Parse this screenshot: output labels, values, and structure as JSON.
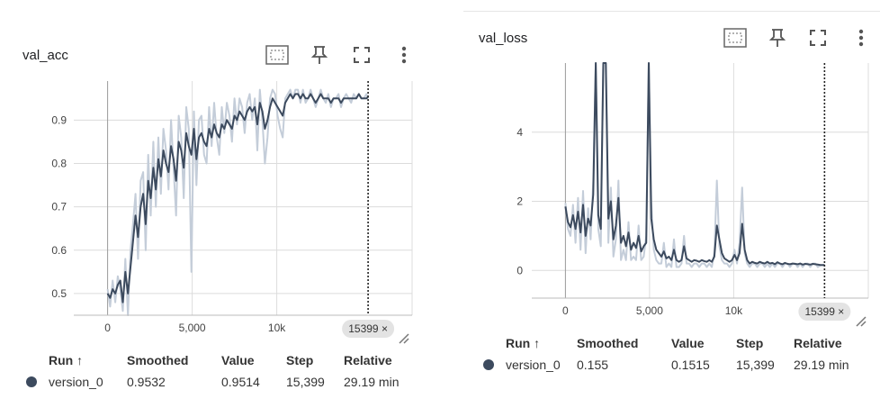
{
  "colors": {
    "line": "#3c4a5e",
    "raw": "#c4cdd9",
    "grid": "#dcdcdc",
    "cursor": "#222222"
  },
  "icons": [
    "fit-domain-icon",
    "pin-icon",
    "fullscreen-icon",
    "more-vert-icon",
    "resize-handle-icon"
  ],
  "charts": [
    {
      "title": "val_acc",
      "cursor_badge": "15399 ×",
      "legend": {
        "headers": [
          "Run ↑",
          "Smoothed",
          "Value",
          "Step",
          "Relative"
        ],
        "row": [
          "version_0",
          "0.9532",
          "0.9514",
          "15,399",
          "29.19 min"
        ]
      }
    },
    {
      "title": "val_loss",
      "cursor_badge": "15399 ×",
      "legend": {
        "headers": [
          "Run ↑",
          "Smoothed",
          "Value",
          "Step",
          "Relative"
        ],
        "row": [
          "version_0",
          "0.155",
          "0.1515",
          "15,399",
          "29.19 min"
        ]
      }
    }
  ],
  "chart_data": [
    {
      "type": "line",
      "title": "val_acc",
      "xlim": [
        -2000,
        18000
      ],
      "ylim": [
        0.45,
        0.99
      ],
      "xticks": [
        0,
        5000,
        10000
      ],
      "xtick_labels": [
        "0",
        "5,000",
        "10k"
      ],
      "yticks": [
        0.5,
        0.6,
        0.7,
        0.8,
        0.9
      ],
      "ytick_labels": [
        "0.5",
        "0.6",
        "0.7",
        "0.8",
        "0.9"
      ],
      "cursor_step": 15399,
      "grid": true,
      "series": [
        {
          "name": "version_0",
          "x": [
            0,
            150,
            300,
            450,
            600,
            750,
            900,
            1050,
            1200,
            1350,
            1500,
            1650,
            1800,
            1950,
            2100,
            2250,
            2400,
            2550,
            2700,
            2850,
            3000,
            3150,
            3300,
            3450,
            3600,
            3750,
            3900,
            4050,
            4200,
            4350,
            4500,
            4650,
            4800,
            4950,
            5100,
            5250,
            5400,
            5550,
            5700,
            5850,
            6000,
            6150,
            6300,
            6450,
            6600,
            6750,
            6900,
            7050,
            7200,
            7350,
            7500,
            7650,
            7800,
            7950,
            8100,
            8250,
            8400,
            8550,
            8700,
            8850,
            9000,
            9150,
            9300,
            9450,
            9600,
            9750,
            9900,
            10050,
            10200,
            10350,
            10500,
            10650,
            10800,
            10950,
            11100,
            11250,
            11400,
            11550,
            11700,
            11850,
            12000,
            12150,
            12300,
            12450,
            12600,
            12750,
            12900,
            13050,
            13200,
            13350,
            13500,
            13650,
            13800,
            13950,
            14100,
            14250,
            14400,
            14550,
            14700,
            14850,
            15000,
            15150,
            15300,
            15399
          ],
          "smoothed": [
            0.5,
            0.49,
            0.51,
            0.5,
            0.52,
            0.53,
            0.48,
            0.55,
            0.5,
            0.56,
            0.62,
            0.68,
            0.63,
            0.7,
            0.73,
            0.66,
            0.76,
            0.72,
            0.79,
            0.74,
            0.81,
            0.77,
            0.83,
            0.8,
            0.78,
            0.84,
            0.81,
            0.76,
            0.85,
            0.83,
            0.79,
            0.87,
            0.84,
            0.82,
            0.88,
            0.81,
            0.86,
            0.87,
            0.85,
            0.84,
            0.88,
            0.86,
            0.89,
            0.87,
            0.86,
            0.89,
            0.88,
            0.9,
            0.89,
            0.88,
            0.91,
            0.9,
            0.92,
            0.91,
            0.9,
            0.92,
            0.93,
            0.92,
            0.93,
            0.89,
            0.94,
            0.92,
            0.88,
            0.9,
            0.93,
            0.95,
            0.94,
            0.93,
            0.92,
            0.91,
            0.94,
            0.95,
            0.96,
            0.95,
            0.96,
            0.96,
            0.95,
            0.96,
            0.95,
            0.95,
            0.96,
            0.95,
            0.94,
            0.95,
            0.96,
            0.95,
            0.95,
            0.95,
            0.94,
            0.95,
            0.95,
            0.95,
            0.94,
            0.95,
            0.95,
            0.95,
            0.95,
            0.95,
            0.95,
            0.96,
            0.95,
            0.95,
            0.95,
            0.9532
          ],
          "raw": [
            0.51,
            0.47,
            0.53,
            0.48,
            0.54,
            0.51,
            0.46,
            0.58,
            0.45,
            0.6,
            0.66,
            0.73,
            0.58,
            0.76,
            0.78,
            0.6,
            0.82,
            0.68,
            0.85,
            0.7,
            0.86,
            0.73,
            0.88,
            0.83,
            0.74,
            0.9,
            0.79,
            0.68,
            0.91,
            0.86,
            0.72,
            0.93,
            0.88,
            0.55,
            0.92,
            0.75,
            0.9,
            0.91,
            0.82,
            0.8,
            0.93,
            0.84,
            0.94,
            0.86,
            0.82,
            0.93,
            0.87,
            0.94,
            0.91,
            0.85,
            0.95,
            0.89,
            0.95,
            0.93,
            0.87,
            0.94,
            0.96,
            0.9,
            0.95,
            0.83,
            0.97,
            0.9,
            0.8,
            0.86,
            0.95,
            0.97,
            0.96,
            0.91,
            0.88,
            0.86,
            0.95,
            0.96,
            0.97,
            0.95,
            0.97,
            0.97,
            0.94,
            0.97,
            0.94,
            0.95,
            0.97,
            0.95,
            0.93,
            0.95,
            0.97,
            0.95,
            0.94,
            0.96,
            0.93,
            0.95,
            0.95,
            0.96,
            0.93,
            0.95,
            0.96,
            0.95,
            0.94,
            0.96,
            0.95,
            0.96,
            0.95,
            0.95,
            0.96,
            0.9514
          ]
        }
      ]
    },
    {
      "type": "line",
      "title": "val_loss",
      "xlim": [
        -2000,
        18000
      ],
      "ylim": [
        -0.8,
        6.0
      ],
      "xticks": [
        0,
        5000,
        10000
      ],
      "xtick_labels": [
        "0",
        "5,000",
        "10k"
      ],
      "yticks": [
        0,
        2,
        4
      ],
      "ytick_labels": [
        "0",
        "2",
        "4"
      ],
      "cursor_step": 15399,
      "grid": true,
      "series": [
        {
          "name": "version_0",
          "x": [
            0,
            150,
            300,
            450,
            600,
            750,
            900,
            1050,
            1200,
            1350,
            1500,
            1650,
            1800,
            1950,
            2100,
            2250,
            2400,
            2550,
            2700,
            2850,
            3000,
            3150,
            3300,
            3450,
            3600,
            3750,
            3900,
            4050,
            4200,
            4350,
            4500,
            4650,
            4800,
            4950,
            5100,
            5250,
            5400,
            5550,
            5700,
            5850,
            6000,
            6150,
            6300,
            6450,
            6600,
            6750,
            6900,
            7050,
            7200,
            7350,
            7500,
            7650,
            7800,
            7950,
            8100,
            8250,
            8400,
            8550,
            8700,
            8850,
            9000,
            9150,
            9300,
            9450,
            9600,
            9750,
            9900,
            10050,
            10200,
            10350,
            10500,
            10650,
            10800,
            10950,
            11100,
            11250,
            11400,
            11550,
            11700,
            11850,
            12000,
            12150,
            12300,
            12450,
            12600,
            12750,
            12900,
            13050,
            13200,
            13350,
            13500,
            13650,
            13800,
            13950,
            14100,
            14250,
            14400,
            14550,
            14700,
            14850,
            15000,
            15150,
            15300,
            15399
          ],
          "smoothed": [
            1.85,
            1.4,
            1.25,
            1.6,
            1.2,
            1.7,
            1.1,
            1.9,
            1.0,
            1.5,
            1.3,
            2.2,
            6.0,
            1.6,
            1.2,
            6.0,
            6.0,
            1.5,
            2.0,
            0.9,
            1.3,
            2.1,
            0.8,
            1.0,
            0.7,
            1.1,
            0.6,
            0.8,
            0.65,
            1.0,
            0.55,
            0.7,
            0.8,
            6.0,
            1.5,
            0.9,
            0.6,
            0.5,
            0.4,
            0.55,
            0.35,
            0.4,
            0.3,
            0.6,
            0.3,
            0.25,
            0.3,
            0.7,
            0.35,
            0.3,
            0.25,
            0.3,
            0.28,
            0.25,
            0.3,
            0.27,
            0.25,
            0.3,
            0.25,
            0.4,
            1.3,
            0.9,
            0.5,
            0.35,
            0.3,
            0.25,
            0.3,
            0.45,
            0.3,
            0.5,
            1.35,
            0.6,
            0.3,
            0.2,
            0.25,
            0.22,
            0.2,
            0.25,
            0.22,
            0.2,
            0.25,
            0.2,
            0.22,
            0.18,
            0.24,
            0.2,
            0.18,
            0.22,
            0.19,
            0.18,
            0.2,
            0.19,
            0.18,
            0.2,
            0.17,
            0.19,
            0.18,
            0.17,
            0.19,
            0.18,
            0.17,
            0.16,
            0.16,
            0.155
          ],
          "raw": [
            1.95,
            1.2,
            1.0,
            1.9,
            0.8,
            2.1,
            0.6,
            2.3,
            0.5,
            1.8,
            0.9,
            2.6,
            6.0,
            1.2,
            0.7,
            6.0,
            6.0,
            0.8,
            2.4,
            0.4,
            0.9,
            2.6,
            0.3,
            0.6,
            0.3,
            1.4,
            0.3,
            0.4,
            0.3,
            1.3,
            0.3,
            0.4,
            1.0,
            6.0,
            2.0,
            0.6,
            0.3,
            0.2,
            0.2,
            0.8,
            0.1,
            0.2,
            0.1,
            0.9,
            0.1,
            0.1,
            0.2,
            1.0,
            0.2,
            0.2,
            0.1,
            0.2,
            0.2,
            0.1,
            0.2,
            0.2,
            0.1,
            0.2,
            0.1,
            0.5,
            2.6,
            0.7,
            0.3,
            0.2,
            0.2,
            0.1,
            0.2,
            0.6,
            0.2,
            0.8,
            2.4,
            0.5,
            0.2,
            0.1,
            0.2,
            0.2,
            0.1,
            0.2,
            0.2,
            0.1,
            0.2,
            0.1,
            0.2,
            0.1,
            0.2,
            0.2,
            0.1,
            0.2,
            0.2,
            0.1,
            0.2,
            0.2,
            0.1,
            0.2,
            0.1,
            0.2,
            0.2,
            0.1,
            0.2,
            0.2,
            0.1,
            0.15,
            0.15,
            0.1515
          ]
        }
      ]
    }
  ]
}
